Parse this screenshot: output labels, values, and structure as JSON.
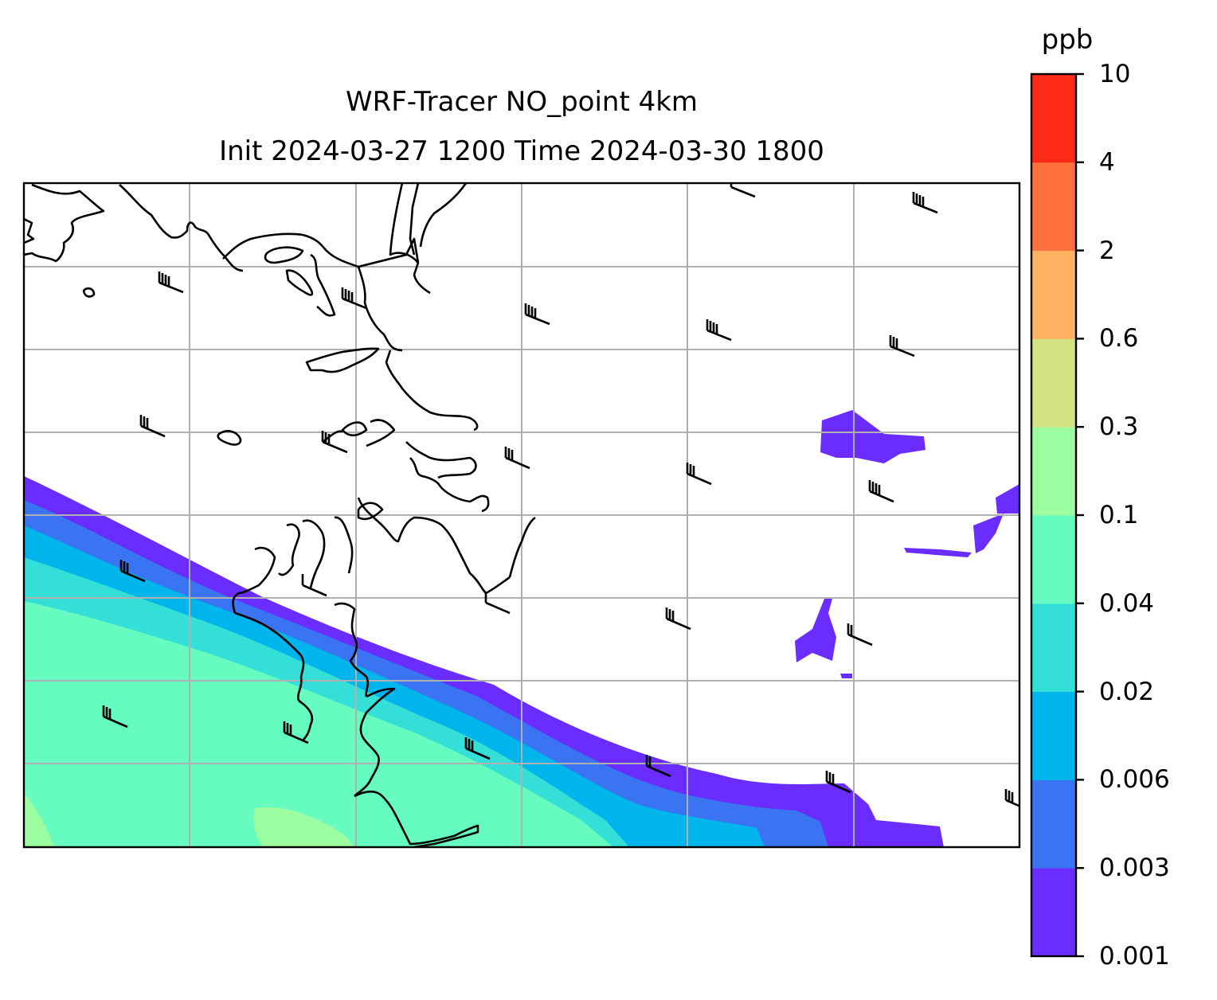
{
  "title": {
    "line1": "WRF-Tracer NO_point 4km",
    "line2": "Init 2024-03-27 1200 Time 2024-03-30 1800"
  },
  "colorbar": {
    "unit": "ppb",
    "levels": [
      "0.001",
      "0.003",
      "0.006",
      "0.02",
      "0.04",
      "0.1",
      "0.3",
      "0.6",
      "2",
      "4",
      "10"
    ],
    "colors": [
      "#6a2cff",
      "#3a74f2",
      "#00b4ec",
      "#33dfd6",
      "#66fcc0",
      "#9cfca0",
      "#d3e384",
      "#ffb262",
      "#ff7240",
      "#ff2a18"
    ]
  },
  "map": {
    "gridlines": true,
    "background": "#ffffff",
    "wind_barbs": "northwesterly",
    "coastline_color": "#000000",
    "grid_color": "#b0b0b0"
  }
}
